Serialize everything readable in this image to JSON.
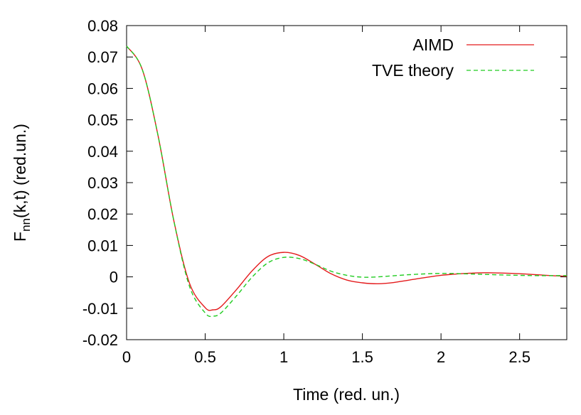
{
  "chart_data": {
    "type": "line",
    "title": "",
    "xlabel": "Time (red. un.)",
    "ylabel": {
      "main": "F",
      "sub": "nn",
      "rest": "(k,t) (red.un.)"
    },
    "xlim": [
      0,
      2.8
    ],
    "ylim": [
      -0.02,
      0.08
    ],
    "xticks": [
      0,
      0.5,
      1,
      1.5,
      2,
      2.5
    ],
    "xtick_labels": [
      "0",
      "0.5",
      "1",
      "1.5",
      "2",
      "2.5"
    ],
    "yticks": [
      -0.02,
      -0.01,
      0,
      0.01,
      0.02,
      0.03,
      0.04,
      0.05,
      0.06,
      0.07,
      0.08
    ],
    "ytick_labels": [
      "-0.02",
      "-0.01",
      "0",
      "0.01",
      "0.02",
      "0.03",
      "0.04",
      "0.05",
      "0.06",
      "0.07",
      "0.08"
    ],
    "grid": false,
    "legend_position": "top-right",
    "series": [
      {
        "name": "AIMD",
        "color": "#e41a1c",
        "style": "solid",
        "x": [
          0,
          0.1,
          0.2,
          0.3,
          0.4,
          0.5,
          0.55,
          0.6,
          0.7,
          0.8,
          0.9,
          1.0,
          1.1,
          1.2,
          1.3,
          1.4,
          1.5,
          1.6,
          1.7,
          1.8,
          2.0,
          2.2,
          2.3,
          2.5,
          2.7,
          2.8
        ],
        "y": [
          0.0735,
          0.066,
          0.045,
          0.018,
          -0.002,
          -0.0098,
          -0.0105,
          -0.0095,
          -0.004,
          0.002,
          0.0065,
          0.0078,
          0.0068,
          0.004,
          0.001,
          -0.001,
          -0.0019,
          -0.0022,
          -0.0018,
          -0.001,
          0.0005,
          0.0012,
          0.0013,
          0.001,
          0.0004,
          0.0002
        ]
      },
      {
        "name": "TVE theory",
        "color": "#22cc22",
        "style": "dashed",
        "x": [
          0,
          0.1,
          0.2,
          0.3,
          0.4,
          0.5,
          0.55,
          0.6,
          0.7,
          0.8,
          0.9,
          1.0,
          1.1,
          1.2,
          1.3,
          1.4,
          1.5,
          1.6,
          1.8,
          2.0,
          2.2,
          2.4,
          2.6,
          2.8
        ],
        "y": [
          0.0735,
          0.066,
          0.045,
          0.018,
          -0.003,
          -0.0115,
          -0.0125,
          -0.0115,
          -0.006,
          0.0,
          0.0045,
          0.0062,
          0.0058,
          0.004,
          0.0018,
          0.0005,
          -0.0001,
          0.0,
          0.0007,
          0.0011,
          0.0009,
          0.0006,
          0.0004,
          0.0004
        ]
      }
    ]
  }
}
